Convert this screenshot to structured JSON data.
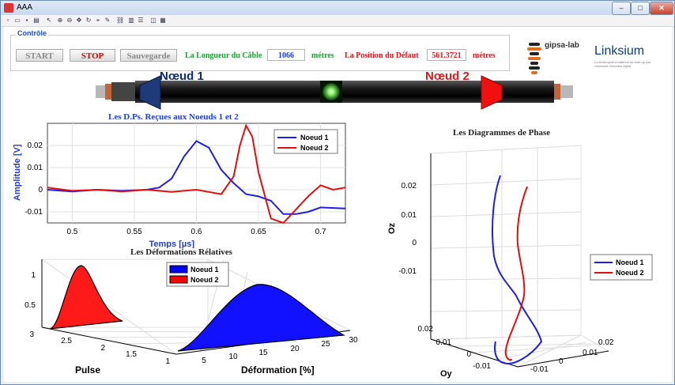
{
  "window": {
    "title": "AAA",
    "buttons": {
      "minimize": "–",
      "maximize": "□",
      "close": "✕"
    }
  },
  "colors": {
    "accent_blue": "#1f3fd6",
    "accent_red": "#e8141c",
    "green": "#1aa32e",
    "panel_title": "#1f4fc9",
    "node1": "#0b2a7a",
    "node2": "#e01818"
  },
  "toolbar": {
    "icons": [
      "new-icon",
      "open-icon",
      "save-icon",
      "print-icon",
      "pointer-icon",
      "zoom-in-icon",
      "zoom-out-icon",
      "pan-icon",
      "rotate-icon",
      "data-cursor-icon",
      "brush-icon",
      "link-icon",
      "colorbar-icon",
      "legend-icon",
      "hide-icon",
      "show-icon"
    ]
  },
  "controle": {
    "title": "Contrôle",
    "start_label": "START",
    "stop_label": "STOP",
    "save_label": "Sauvegarde",
    "cable_length_label": "La Longueur du Câble",
    "cable_length_value": "1066",
    "cable_length_unit": "métres",
    "fault_position_label": "La Position du Défaut",
    "fault_position_value": "561.3721",
    "fault_position_unit": "métres"
  },
  "logos": {
    "gipsa": "gipsa-lab",
    "linksium": "Linksium",
    "linksium_tagline": "La technopole fondatrice de start-up par Université Grenoble Alpes"
  },
  "cable": {
    "node1_label": "Nœud 1",
    "node2_label": "Nœud 2"
  },
  "chart_data": [
    {
      "type": "line",
      "title": "Les D.Ps. Reçues aux Noeuds 1 et 2",
      "xlabel": "Temps [µs]",
      "ylabel": "Amplitude [V]",
      "xlim": [
        0.48,
        0.72
      ],
      "ylim": [
        -0.015,
        0.03
      ],
      "xticks": [
        "0.5",
        "0.55",
        "0.6",
        "0.65",
        "0.7"
      ],
      "xtick_values": [
        0.5,
        0.55,
        0.6,
        0.65,
        0.7
      ],
      "yticks": [
        "-0.01",
        "0",
        "0.01",
        "0.02"
      ],
      "ytick_values": [
        -0.01,
        0,
        0.01,
        0.02
      ],
      "legend_position": "top-right",
      "grid": true,
      "series": [
        {
          "name": "Noeud 1",
          "color": "#1f1fe0",
          "x": [
            0.48,
            0.5,
            0.52,
            0.54,
            0.56,
            0.57,
            0.58,
            0.59,
            0.6,
            0.61,
            0.62,
            0.63,
            0.64,
            0.65,
            0.66,
            0.67,
            0.68,
            0.69,
            0.7,
            0.72
          ],
          "y": [
            0.0,
            -0.0008,
            0.0,
            -0.0005,
            0.0,
            0.001,
            0.005,
            0.015,
            0.022,
            0.019,
            0.009,
            0.003,
            -0.002,
            -0.003,
            -0.005,
            -0.011,
            -0.011,
            -0.01,
            -0.008,
            -0.0085
          ]
        },
        {
          "name": "Noeud 2",
          "color": "#e01010",
          "x": [
            0.48,
            0.5,
            0.52,
            0.54,
            0.56,
            0.58,
            0.6,
            0.62,
            0.63,
            0.635,
            0.64,
            0.645,
            0.65,
            0.66,
            0.67,
            0.68,
            0.69,
            0.7,
            0.71,
            0.72
          ],
          "y": [
            0.001,
            -0.0005,
            0.0,
            -0.0008,
            0.0,
            -0.001,
            0.0,
            -0.002,
            0.006,
            0.02,
            0.029,
            0.024,
            0.008,
            -0.013,
            -0.015,
            -0.009,
            -0.003,
            0.002,
            0.0,
            0.001
          ]
        }
      ]
    },
    {
      "type": "line",
      "title": "Les Diagrammes de Phase",
      "xlabel": "Oy",
      "ylabel": "Oz",
      "yticks": [
        "-0.01",
        "0",
        "0.01",
        "0.02"
      ],
      "oy_ticks": [
        "0.02",
        "0.01",
        "0",
        "-0.01"
      ],
      "ox_ticks": [
        "-0.01",
        "0",
        "0.01",
        "0.02"
      ],
      "legend_position": "right",
      "grid": true,
      "series": [
        {
          "name": "Noeud 1",
          "color": "#1f1fe0"
        },
        {
          "name": "Noeud 2",
          "color": "#e01010"
        }
      ]
    },
    {
      "type": "area",
      "title": "Les Déformations Rélatives",
      "xlabel": "Déformation [%]",
      "ylabel": "Pulse",
      "xticks": [
        "5",
        "10",
        "15",
        "20",
        "25",
        "30"
      ],
      "yticks": [
        "1",
        "1.5",
        "2",
        "2.5",
        "3"
      ],
      "zticks": [
        "0.5",
        "1"
      ],
      "legend_position": "top-center",
      "series": [
        {
          "name": "Noeud 1",
          "color": "#0000ff"
        },
        {
          "name": "Noeud 2",
          "color": "#ff0000"
        }
      ]
    }
  ]
}
